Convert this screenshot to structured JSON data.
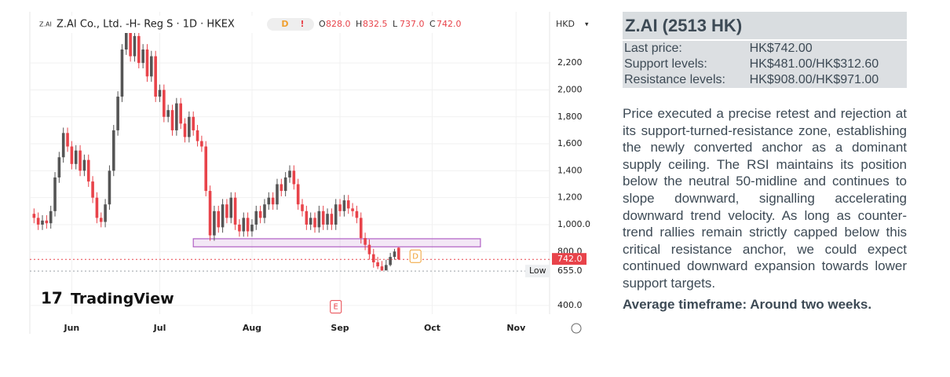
{
  "chart_data": {
    "type": "candlestick",
    "header": {
      "symbol": "Z.AI Co., Ltd. -H- Reg S · 1D · HKEX",
      "badge": "D",
      "alert": "!",
      "ohlc": [
        {
          "key": "O",
          "value": "828.0"
        },
        {
          "key": "H",
          "value": "832.5"
        },
        {
          "key": "L",
          "value": "737.0"
        },
        {
          "key": "C",
          "value": "742.0"
        }
      ]
    },
    "currency": "HKD",
    "logo": "TradingView",
    "series": {
      "up_color": "#555555",
      "down_color": "#e8434a",
      "open": [
        1080,
        1050,
        1000,
        1030,
        1010,
        1100,
        1350,
        1500,
        1680,
        1580,
        1450,
        1550,
        1400,
        1480,
        1320,
        1200,
        1050,
        1020,
        1150,
        1400,
        1700,
        1950,
        2300,
        2450,
        2250,
        2400,
        2200,
        2300,
        2100,
        2250,
        1950,
        2000,
        1800,
        1850,
        1700,
        1900,
        1750,
        1650,
        1800,
        1700,
        1620,
        1580,
        1250,
        920,
        1100,
        980,
        1150,
        1050,
        1200,
        1000,
        950,
        1050,
        950,
        1000,
        1100,
        1050,
        1150,
        1200,
        1150,
        1300,
        1250,
        1350,
        1400,
        1300,
        1150,
        1100,
        1000,
        1050,
        980,
        1100,
        1000,
        1080,
        1000,
        1150,
        1100,
        1180,
        1120,
        1100,
        1050,
        900,
        850,
        780,
        720,
        690,
        660,
        700,
        760,
        828
      ],
      "high": [
        1120,
        1090,
        1070,
        1070,
        1140,
        1390,
        1540,
        1720,
        1720,
        1620,
        1590,
        1590,
        1520,
        1520,
        1360,
        1240,
        1090,
        1190,
        1440,
        1740,
        1990,
        2340,
        2550,
        2490,
        2440,
        2440,
        2340,
        2340,
        2290,
        2290,
        2040,
        2040,
        1890,
        1890,
        1940,
        1940,
        1790,
        1840,
        1840,
        1740,
        1660,
        1620,
        1290,
        1140,
        1140,
        1190,
        1190,
        1240,
        1240,
        1040,
        1090,
        1090,
        1040,
        1140,
        1140,
        1190,
        1240,
        1240,
        1340,
        1340,
        1390,
        1440,
        1440,
        1340,
        1190,
        1140,
        1090,
        1090,
        1140,
        1140,
        1120,
        1120,
        1190,
        1190,
        1220,
        1220,
        1160,
        1140,
        1090,
        940,
        890,
        820,
        760,
        730,
        740,
        790,
        820,
        832.5
      ],
      "low": [
        1010,
        960,
        960,
        970,
        970,
        1060,
        1310,
        1460,
        1540,
        1410,
        1410,
        1360,
        1360,
        1280,
        1160,
        1010,
        980,
        980,
        1110,
        1360,
        1660,
        1910,
        2260,
        2210,
        2210,
        2160,
        2160,
        2060,
        2060,
        1910,
        1910,
        1760,
        1760,
        1660,
        1660,
        1710,
        1610,
        1610,
        1660,
        1580,
        1540,
        1210,
        880,
        880,
        940,
        940,
        1010,
        1010,
        960,
        910,
        910,
        910,
        910,
        960,
        1010,
        1010,
        1110,
        1110,
        1110,
        1210,
        1210,
        1310,
        1260,
        1110,
        1060,
        960,
        960,
        940,
        940,
        960,
        960,
        960,
        960,
        1060,
        1060,
        1080,
        1060,
        1010,
        860,
        810,
        740,
        680,
        670,
        655,
        660,
        690,
        740,
        737
      ],
      "close": [
        1050,
        1000,
        1030,
        1010,
        1100,
        1350,
        1500,
        1680,
        1580,
        1450,
        1550,
        1400,
        1480,
        1320,
        1200,
        1050,
        1020,
        1150,
        1400,
        1700,
        1950,
        2300,
        2450,
        2250,
        2400,
        2200,
        2300,
        2100,
        2250,
        1950,
        2000,
        1800,
        1850,
        1700,
        1900,
        1750,
        1650,
        1800,
        1700,
        1620,
        1580,
        1250,
        920,
        1100,
        980,
        1150,
        1050,
        1200,
        1000,
        950,
        1050,
        950,
        1000,
        1100,
        1050,
        1150,
        1200,
        1150,
        1300,
        1250,
        1350,
        1400,
        1300,
        1150,
        1100,
        1000,
        1050,
        980,
        1100,
        1000,
        1080,
        1000,
        1150,
        1100,
        1180,
        1120,
        1100,
        1050,
        900,
        850,
        780,
        720,
        690,
        660,
        700,
        760,
        800,
        742
      ]
    },
    "xlim": [
      -1,
      123
    ],
    "xticks": [
      {
        "value": 9,
        "label": "Jun"
      },
      {
        "value": 30,
        "label": "Jul"
      },
      {
        "value": 52,
        "label": "Aug"
      },
      {
        "value": 73,
        "label": "Sep"
      },
      {
        "value": 95,
        "label": "Oct"
      },
      {
        "value": 115,
        "label": "Nov"
      }
    ],
    "ylim": [
      335,
      2580
    ],
    "yticks": [
      {
        "value": 2200,
        "label": "2,200"
      },
      {
        "value": 2000,
        "label": "2,000"
      },
      {
        "value": 1800,
        "label": "1,800"
      },
      {
        "value": 1600,
        "label": "1,600"
      },
      {
        "value": 1400,
        "label": "1,400"
      },
      {
        "value": 1200,
        "label": "1,200"
      },
      {
        "value": 1000,
        "label": "1,000.0"
      },
      {
        "value": 800,
        "label": "800.0"
      },
      {
        "value": 400,
        "label": "400.0"
      }
    ],
    "grid": true,
    "zone": {
      "low": 835,
      "high": 895,
      "start": 38,
      "end": 106.5,
      "color": "#b05fc4"
    },
    "price_lines": [
      {
        "value": 742,
        "label": "742.0",
        "color": "#e8434a"
      },
      {
        "value": 655,
        "name": "Low",
        "label": "655.0",
        "color": "#9aa0a6"
      }
    ],
    "markers": [
      {
        "text": "D",
        "x": 91,
        "value": 765,
        "color": "#f0a030"
      },
      {
        "text": "E",
        "x": 72,
        "value": 390,
        "color": "#e8434a"
      }
    ]
  },
  "panel": {
    "title": "Z.AI (2513 HK)",
    "rows": [
      [
        "Last price:",
        "HK$742.00"
      ],
      [
        "Support levels:",
        "HK$481.00/HK$312.60"
      ],
      [
        "Resistance levels:",
        "HK$908.00/HK$971.00"
      ]
    ],
    "body": "Price executed a precise retest and rejection at its support-turned-resistance zone, establishing the newly converted anchor as a dominant supply ceiling. The RSI maintains its position below the neutral 50-midline and continues to slope downward, signalling accelerating downward trend velocity. As long as counter-trend rallies remain strictly capped below this critical resistance anchor, we could expect continued downward expansion towards lower support targets.",
    "footer": "Average timeframe: Around two weeks."
  }
}
